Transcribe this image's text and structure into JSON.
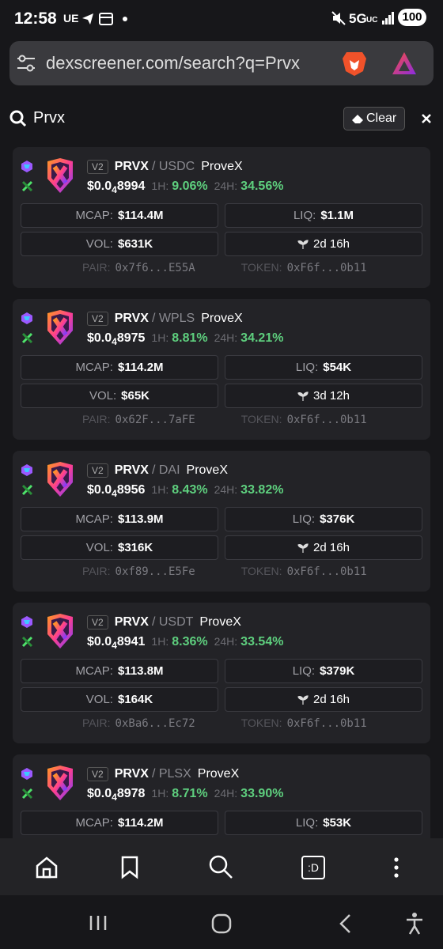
{
  "status_bar": {
    "time": "12:58",
    "carrier": "UE",
    "network": "5G",
    "network_suffix": "UC",
    "battery": "100"
  },
  "address_bar": {
    "url": "dexscreener.com/search?q=Prvx"
  },
  "search": {
    "query": "Prvx",
    "clear": "Clear"
  },
  "labels": {
    "h1": "1H:",
    "h24": "24H:",
    "mcap": "MCAP:",
    "liq": "LIQ:",
    "vol": "VOL:",
    "pair": "PAIR:",
    "token": "TOKEN:"
  },
  "results": [
    {
      "version": "V2",
      "base": "PRVX",
      "quote": "/ USDC",
      "name": "ProveX",
      "price": {
        "prefix": "$0.0",
        "zeros": "4",
        "digits": "8994"
      },
      "change_1h": "9.06%",
      "change_24h": "34.56%",
      "mcap": "$114.4M",
      "liq": "$1.1M",
      "vol": "$631K",
      "age": "2d 16h",
      "pair": "0x7f6...E55A",
      "token": "0xF6f...0b11"
    },
    {
      "version": "V2",
      "base": "PRVX",
      "quote": "/ WPLS",
      "name": "ProveX",
      "price": {
        "prefix": "$0.0",
        "zeros": "4",
        "digits": "8975"
      },
      "change_1h": "8.81%",
      "change_24h": "34.21%",
      "mcap": "$114.2M",
      "liq": "$54K",
      "vol": "$65K",
      "age": "3d 12h",
      "pair": "0x62F...7aFE",
      "token": "0xF6f...0b11"
    },
    {
      "version": "V2",
      "base": "PRVX",
      "quote": "/ DAI",
      "name": "ProveX",
      "price": {
        "prefix": "$0.0",
        "zeros": "4",
        "digits": "8956"
      },
      "change_1h": "8.43%",
      "change_24h": "33.82%",
      "mcap": "$113.9M",
      "liq": "$376K",
      "vol": "$316K",
      "age": "2d 16h",
      "pair": "0xf89...E5Fe",
      "token": "0xF6f...0b11"
    },
    {
      "version": "V2",
      "base": "PRVX",
      "quote": "/ USDT",
      "name": "ProveX",
      "price": {
        "prefix": "$0.0",
        "zeros": "4",
        "digits": "8941"
      },
      "change_1h": "8.36%",
      "change_24h": "33.54%",
      "mcap": "$113.8M",
      "liq": "$379K",
      "vol": "$164K",
      "age": "2d 16h",
      "pair": "0xBa6...Ec72",
      "token": "0xF6f...0b11"
    },
    {
      "version": "V2",
      "base": "PRVX",
      "quote": "/ PLSX",
      "name": "ProveX",
      "price": {
        "prefix": "$0.0",
        "zeros": "4",
        "digits": "8978"
      },
      "change_1h": "8.71%",
      "change_24h": "33.90%",
      "mcap": "$114.2M",
      "liq": "$53K"
    }
  ],
  "nav": {
    "dex_label": ":D"
  }
}
